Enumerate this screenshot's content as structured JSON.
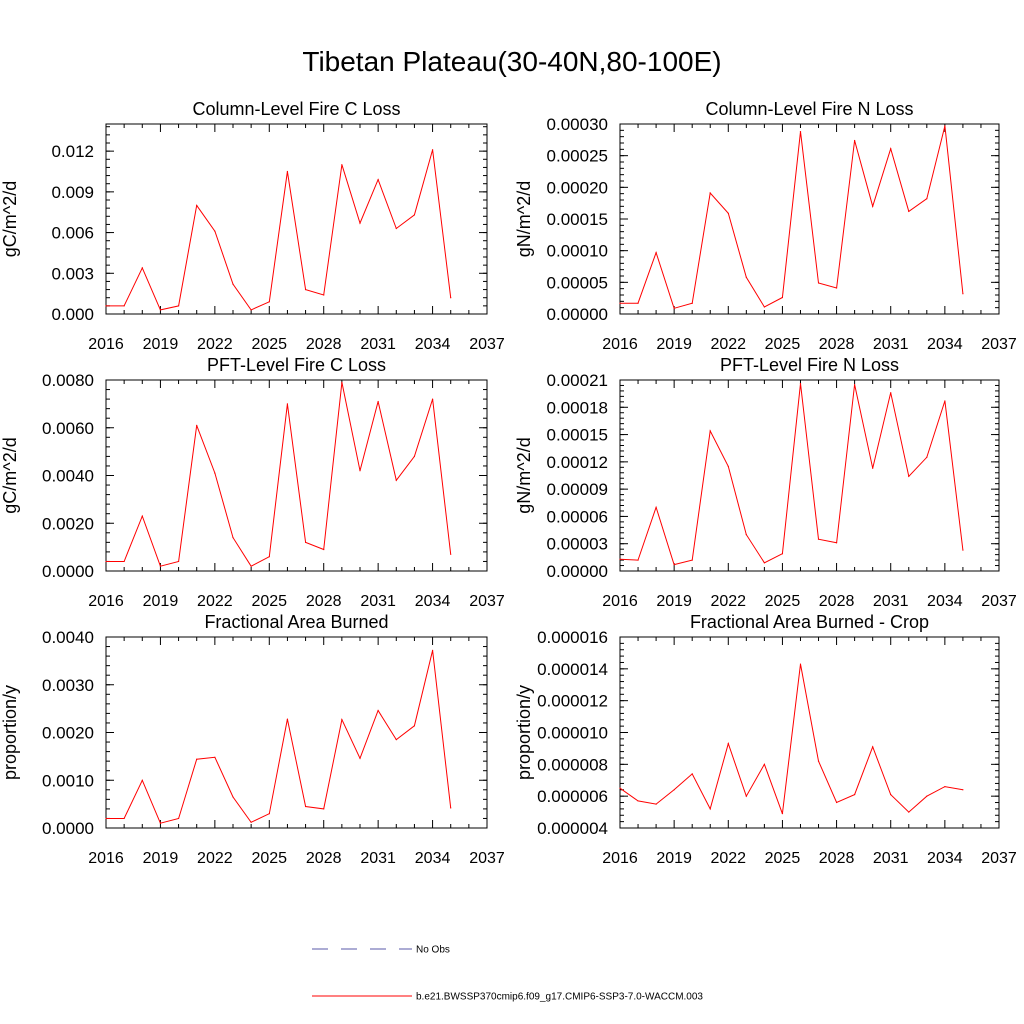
{
  "title": "Tibetan Plateau(30-40N,80-100E)",
  "legend": {
    "placement": "bottom-center",
    "entries": [
      {
        "label": "No Obs",
        "color": "#5a5aa8",
        "dash": true
      },
      {
        "label": "b.e21.BWSSP370cmip6.f09_g17.CMIP6-SSP3-7.0-WACCM.003",
        "color": "#ff0000",
        "dash": false
      }
    ]
  },
  "chart_data": [
    {
      "type": "line",
      "title": "Column-Level Fire C Loss",
      "ylabel": "gC/m^2/d",
      "xlim": [
        2016,
        2037
      ],
      "ylim": [
        0,
        0.014
      ],
      "xticks": [
        2016,
        2019,
        2022,
        2025,
        2028,
        2031,
        2034,
        2037
      ],
      "xticklabels": [
        "2016",
        "2019",
        "2022",
        "2025",
        "2028",
        "2031",
        "2034",
        "2037"
      ],
      "yticks": [
        0,
        0.003,
        0.006,
        0.009,
        0.012
      ],
      "yticklabels": [
        "0.000",
        "0.003",
        "0.006",
        "0.009",
        "0.012"
      ],
      "x": [
        2016,
        2017,
        2018,
        2019,
        2020,
        2021,
        2022,
        2023,
        2024,
        2025,
        2026,
        2027,
        2028,
        2029,
        2030,
        2031,
        2032,
        2033,
        2034,
        2035
      ],
      "series": [
        {
          "color": "#ff0000",
          "values": [
            0.0006,
            0.0006,
            0.0034,
            0.0003,
            0.0006,
            0.008,
            0.0061,
            0.0022,
            0.0003,
            0.0009,
            0.0105,
            0.0018,
            0.0014,
            0.011,
            0.0067,
            0.0099,
            0.0063,
            0.0073,
            0.0121,
            0.0012
          ]
        }
      ]
    },
    {
      "type": "line",
      "title": "Column-Level Fire N Loss",
      "ylabel": "gN/m^2/d",
      "xlim": [
        2016,
        2037
      ],
      "ylim": [
        0,
        0.0003
      ],
      "xticks": [
        2016,
        2019,
        2022,
        2025,
        2028,
        2031,
        2034,
        2037
      ],
      "xticklabels": [
        "2016",
        "2019",
        "2022",
        "2025",
        "2028",
        "2031",
        "2034",
        "2037"
      ],
      "yticks": [
        0,
        5e-05,
        0.0001,
        0.00015,
        0.0002,
        0.00025,
        0.0003
      ],
      "yticklabels": [
        "0.00000",
        "0.00005",
        "0.00010",
        "0.00015",
        "0.00020",
        "0.00025",
        "0.00030"
      ],
      "x": [
        2016,
        2017,
        2018,
        2019,
        2020,
        2021,
        2022,
        2023,
        2024,
        2025,
        2026,
        2027,
        2028,
        2029,
        2030,
        2031,
        2032,
        2033,
        2034,
        2035
      ],
      "series": [
        {
          "color": "#ff0000",
          "values": [
            1.7e-05,
            1.7e-05,
            9.7e-05,
            9e-06,
            1.7e-05,
            0.000191,
            0.000159,
            5.8e-05,
            1.1e-05,
            2.6e-05,
            0.000288,
            4.9e-05,
            4.1e-05,
            0.000274,
            0.00017,
            0.000261,
            0.000162,
            0.000182,
            0.000297,
            3.2e-05
          ]
        }
      ]
    },
    {
      "type": "line",
      "title": "PFT-Level Fire C Loss",
      "ylabel": "gC/m^2/d",
      "xlim": [
        2016,
        2037
      ],
      "ylim": [
        0,
        0.008
      ],
      "xticks": [
        2016,
        2019,
        2022,
        2025,
        2028,
        2031,
        2034,
        2037
      ],
      "xticklabels": [
        "2016",
        "2019",
        "2022",
        "2025",
        "2028",
        "2031",
        "2034",
        "2037"
      ],
      "yticks": [
        0,
        0.002,
        0.004,
        0.006,
        0.008
      ],
      "yticklabels": [
        "0.0000",
        "0.0020",
        "0.0040",
        "0.0060",
        "0.0080"
      ],
      "x": [
        2016,
        2017,
        2018,
        2019,
        2020,
        2021,
        2022,
        2023,
        2024,
        2025,
        2026,
        2027,
        2028,
        2029,
        2030,
        2031,
        2032,
        2033,
        2034,
        2035
      ],
      "series": [
        {
          "color": "#ff0000",
          "values": [
            0.0004,
            0.0004,
            0.0023,
            0.0002,
            0.0004,
            0.0061,
            0.0041,
            0.0014,
            0.0002,
            0.0006,
            0.007,
            0.0012,
            0.0009,
            0.0079,
            0.0042,
            0.0071,
            0.0038,
            0.0048,
            0.0072,
            0.0007
          ]
        }
      ]
    },
    {
      "type": "line",
      "title": "PFT-Level Fire N Loss",
      "ylabel": "gN/m^2/d",
      "xlim": [
        2016,
        2037
      ],
      "ylim": [
        0,
        0.00021
      ],
      "xticks": [
        2016,
        2019,
        2022,
        2025,
        2028,
        2031,
        2034,
        2037
      ],
      "xticklabels": [
        "2016",
        "2019",
        "2022",
        "2025",
        "2028",
        "2031",
        "2034",
        "2037"
      ],
      "yticks": [
        0,
        3e-05,
        6e-05,
        9e-05,
        0.00012,
        0.00015,
        0.00018,
        0.00021
      ],
      "yticklabels": [
        "0.00000",
        "0.00003",
        "0.00006",
        "0.00009",
        "0.00012",
        "0.00015",
        "0.00018",
        "0.00021"
      ],
      "x": [
        2016,
        2017,
        2018,
        2019,
        2020,
        2021,
        2022,
        2023,
        2024,
        2025,
        2026,
        2027,
        2028,
        2029,
        2030,
        2031,
        2032,
        2033,
        2034,
        2035
      ],
      "series": [
        {
          "color": "#ff0000",
          "values": [
            1.3e-05,
            1.2e-05,
            7e-05,
            7e-06,
            1.2e-05,
            0.000154,
            0.000115,
            4e-05,
            9e-06,
            1.9e-05,
            0.000206,
            3.5e-05,
            3.1e-05,
            0.000205,
            0.000113,
            0.000196,
            0.000104,
            0.000125,
            0.000187,
            2.3e-05
          ]
        }
      ]
    },
    {
      "type": "line",
      "title": "Fractional Area Burned",
      "ylabel": "proportion/y",
      "xlim": [
        2016,
        2037
      ],
      "ylim": [
        0,
        0.004
      ],
      "xticks": [
        2016,
        2019,
        2022,
        2025,
        2028,
        2031,
        2034,
        2037
      ],
      "xticklabels": [
        "2016",
        "2019",
        "2022",
        "2025",
        "2028",
        "2031",
        "2034",
        "2037"
      ],
      "yticks": [
        0,
        0.001,
        0.002,
        0.003,
        0.004
      ],
      "yticklabels": [
        "0.0000",
        "0.0010",
        "0.0020",
        "0.0030",
        "0.0040"
      ],
      "x": [
        2016,
        2017,
        2018,
        2019,
        2020,
        2021,
        2022,
        2023,
        2024,
        2025,
        2026,
        2027,
        2028,
        2029,
        2030,
        2031,
        2032,
        2033,
        2034,
        2035
      ],
      "series": [
        {
          "color": "#ff0000",
          "values": [
            0.0002,
            0.0002,
            0.001,
            0.0001,
            0.0002,
            0.00144,
            0.00148,
            0.00065,
            0.00012,
            0.0003,
            0.00228,
            0.00045,
            0.0004,
            0.00227,
            0.00146,
            0.00246,
            0.00185,
            0.00214,
            0.00372,
            0.00042
          ]
        }
      ]
    },
    {
      "type": "line",
      "title": "Fractional Area Burned - Crop",
      "ylabel": "proportion/y",
      "xlim": [
        2016,
        2037
      ],
      "ylim": [
        4e-06,
        1.6e-05
      ],
      "xticks": [
        2016,
        2019,
        2022,
        2025,
        2028,
        2031,
        2034,
        2037
      ],
      "xticklabels": [
        "2016",
        "2019",
        "2022",
        "2025",
        "2028",
        "2031",
        "2034",
        "2037"
      ],
      "yticks": [
        4e-06,
        6e-06,
        8e-06,
        1e-05,
        1.2e-05,
        1.4e-05,
        1.6e-05
      ],
      "yticklabels": [
        "0.000004",
        "0.000006",
        "0.000008",
        "0.000010",
        "0.000012",
        "0.000014",
        "0.000016"
      ],
      "x": [
        2016,
        2017,
        2018,
        2019,
        2020,
        2021,
        2022,
        2023,
        2024,
        2025,
        2026,
        2027,
        2028,
        2029,
        2030,
        2031,
        2032,
        2033,
        2034,
        2035
      ],
      "series": [
        {
          "color": "#ff0000",
          "values": [
            6.5e-06,
            5.7e-06,
            5.5e-06,
            6.4e-06,
            7.4e-06,
            5.2e-06,
            9.3e-06,
            6e-06,
            8e-06,
            4.9e-06,
            1.43e-05,
            8.2e-06,
            5.6e-06,
            6.1e-06,
            9.1e-06,
            6.1e-06,
            5e-06,
            6e-06,
            6.6e-06,
            6.4e-06
          ]
        }
      ]
    }
  ]
}
